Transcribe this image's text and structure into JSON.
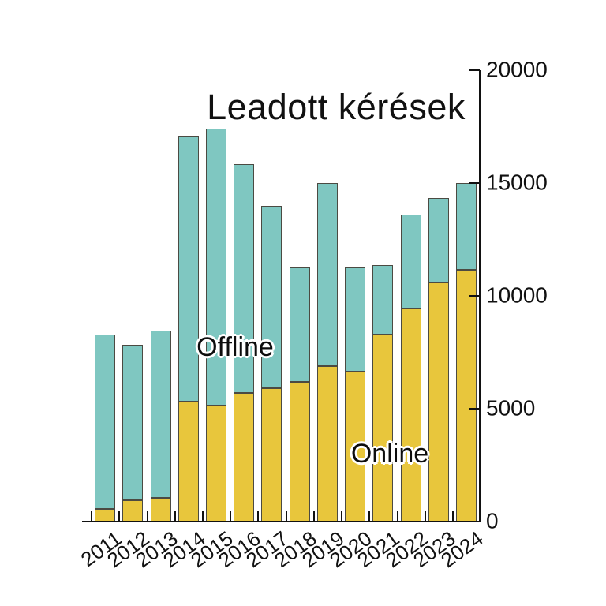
{
  "title": "Leadott kérések",
  "annotations": {
    "offline": "Offline",
    "online": "Online"
  },
  "colors": {
    "online": "#e8c63c",
    "offline": "#7fc7c1",
    "segment_outline": "#4b4a42",
    "axis": "#111111",
    "text": "#111111",
    "background": "#ffffff"
  },
  "chart_data": {
    "type": "bar",
    "stacked": true,
    "title": "Leadott kérések",
    "categories": [
      "2011",
      "2012",
      "2013",
      "2014",
      "2015",
      "2016",
      "2017",
      "2018",
      "2019",
      "2020",
      "2021",
      "2022",
      "2023",
      "2024"
    ],
    "series": [
      {
        "name": "Online",
        "color": "#e8c63c",
        "values": [
          550,
          950,
          1050,
          5300,
          5150,
          5700,
          5900,
          6200,
          6900,
          6650,
          8300,
          9450,
          10600,
          11150
        ]
      },
      {
        "name": "Offline",
        "color": "#7fc7c1",
        "values": [
          7750,
          6900,
          7400,
          11800,
          12250,
          10150,
          8100,
          5050,
          8100,
          4600,
          3050,
          4150,
          3750,
          3850
        ]
      }
    ],
    "totals": [
      8300,
      7850,
      8450,
      17100,
      17400,
      15850,
      14000,
      11250,
      15000,
      11250,
      11350,
      13600,
      14350,
      15000
    ],
    "xlabel": "",
    "ylabel": "",
    "ylim": [
      0,
      20000
    ],
    "yticks": [
      0,
      5000,
      10000,
      15000,
      20000
    ],
    "y_axis_side": "right",
    "grid": false,
    "legend_position": "inline-annotations"
  }
}
